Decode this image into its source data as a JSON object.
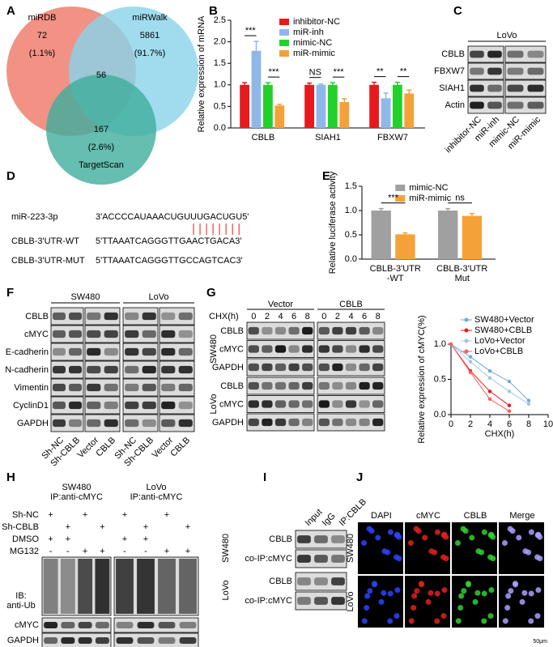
{
  "panel_labels": [
    "A",
    "B",
    "C",
    "D",
    "E",
    "F",
    "G",
    "H",
    "I",
    "J"
  ],
  "venn": {
    "sets": [
      {
        "name": "miRDB",
        "count": 72,
        "percent": "(1.1%)"
      },
      {
        "name": "miRWalk",
        "count": 5861,
        "percent": "(91.7%)"
      },
      {
        "name": "TargetScan",
        "count": 167,
        "percent": "(2.6%)"
      }
    ],
    "overlap": 56
  },
  "chart_data": [
    {
      "type": "bar",
      "ylabel": "Relative expression of mRNA",
      "categories": [
        "CBLB",
        "SIAH1",
        "FBXW7"
      ],
      "series": [
        {
          "name": "inhibitor-NC",
          "color": "#e8191c",
          "values": [
            1.0,
            1.0,
            1.0
          ],
          "errors": [
            0.05,
            0.04,
            0.06
          ]
        },
        {
          "name": "miR-inh",
          "color": "#8fb8e8",
          "values": [
            1.79,
            1.0,
            0.69
          ],
          "errors": [
            0.22,
            0.02,
            0.12
          ]
        },
        {
          "name": "mimic-NC",
          "color": "#22d12a",
          "values": [
            1.0,
            1.0,
            1.0
          ],
          "errors": [
            0.05,
            0.05,
            0.06
          ]
        },
        {
          "name": "miR-mimic",
          "color": "#f5a13a",
          "values": [
            0.52,
            0.6,
            0.8
          ],
          "errors": [
            0.03,
            0.08,
            0.08
          ]
        }
      ],
      "ylim": [
        0,
        2.5
      ],
      "yticks": [
        {
          "value": 0,
          "label": "0.0"
        },
        0.5,
        {
          "value": 1,
          "label": "1.0"
        },
        1.5,
        {
          "value": 2,
          "label": "2.0"
        },
        2.5
      ],
      "significance": [
        [
          "***",
          "***"
        ],
        [
          "NS",
          "***"
        ],
        [
          "**",
          "**"
        ]
      ],
      "legend": "upper left"
    },
    {
      "type": "bar",
      "ylabel": "Relative luciferase activity",
      "categories": [
        [
          "CBLB-3'UTR",
          "-WT"
        ],
        [
          "CBLB-3'UTR",
          "Mut"
        ]
      ],
      "series": [
        {
          "name": "mimic-NC",
          "color": "#a0a0a0",
          "values": [
            1.0,
            1.0
          ],
          "errors": [
            0.04,
            0.04
          ]
        },
        {
          "name": "miR-mimic",
          "color": "#f5a13a",
          "values": [
            0.51,
            0.89
          ],
          "errors": [
            0.03,
            0.05
          ]
        }
      ],
      "ylim": [
        0,
        1.5
      ],
      "yticks": [
        {
          "value": 0,
          "label": "0.0"
        },
        0.5,
        {
          "value": 1,
          "label": "1.0"
        },
        1.5
      ],
      "significance": [
        [
          "***"
        ],
        [
          "ns"
        ]
      ],
      "legend": "upper left"
    },
    {
      "type": "line",
      "ylabel": "Relative expression of cMYC(%)",
      "xlabel": "CHX(h)",
      "x": [
        0,
        2,
        4,
        6,
        8
      ],
      "series": [
        {
          "name": "SW480+Vector",
          "color": "#6fa8dc",
          "values": [
            1.0,
            0.82,
            0.62,
            0.47,
            0.2
          ]
        },
        {
          "name": "SW480+CBLB",
          "color": "#e8191c",
          "values": [
            1.0,
            0.62,
            0.33,
            0.13,
            null
          ]
        },
        {
          "name": "LoVo+Vector",
          "color": "#9fc5e8",
          "values": [
            1.0,
            0.75,
            0.52,
            0.33,
            0.15
          ]
        },
        {
          "name": "LoVo+CBLB",
          "color": "#ff5a5a",
          "values": [
            1.0,
            0.6,
            0.22,
            0.05,
            null
          ]
        }
      ],
      "xlim": [
        0,
        10
      ],
      "xticks": [
        0,
        2,
        4,
        6,
        8,
        10
      ],
      "ylim": [
        0,
        1.0
      ],
      "yticks": [
        {
          "value": 0,
          "label": "0.0"
        },
        0.5,
        {
          "value": 1,
          "label": "1.0"
        }
      ],
      "legend": "upper right"
    }
  ],
  "blot_c": {
    "cell_line": "LoVo",
    "rows": [
      "CBLB",
      "FBXW7",
      "SIAH1",
      "Actin"
    ],
    "lanes": [
      "inhibitor-NC",
      "miR-inh",
      "mimic-NC",
      "miR-mimic"
    ]
  },
  "sequences": {
    "rows": [
      {
        "label": "miR-223-3p",
        "sequence": "3'ACCCCAUAAACUGU",
        "site": "UUGACUGU",
        "end": "5'"
      },
      {
        "label": "CBLB-3'UTR-WT",
        "sequence": "5'TTAAATCAGGGTTG",
        "site": "AACTGACA",
        "end": "3'"
      },
      {
        "label": "CBLB-3'UTR-MUT",
        "sequence": "5'TTAAATCAGGGTTG",
        "site": "CCAGTCAC",
        "end": "3'"
      }
    ]
  },
  "blot_f": {
    "groups": [
      "SW480",
      "LoVo"
    ],
    "rows": [
      "CBLB",
      "cMYC",
      "E-cadherin",
      "N-cadherin",
      "Vimentin",
      "CyclinD1",
      "GAPDH"
    ],
    "lanes": [
      "Sh-NC",
      "Sh-CBLB",
      "Vector",
      "CBLB",
      "Sh-NC",
      "Sh-CBLB",
      "Vector",
      "CBLB"
    ]
  },
  "blot_g": {
    "time_label": "CHX(h)",
    "groups": [
      "Vector",
      "CBLB"
    ],
    "times": [
      0,
      2,
      4,
      6,
      8
    ],
    "cell_lines": [
      {
        "name": "SW480",
        "rows": [
          "CBLB",
          "cMYC",
          "GAPDH"
        ]
      },
      {
        "name": "LoVo",
        "rows": [
          "CBLB",
          "cMYC",
          "GAPDH"
        ]
      }
    ]
  },
  "blot_h": {
    "groups": [
      [
        "SW480",
        "IP:anti-cMYC"
      ],
      [
        "LoVo",
        "IP:anti-cMYC"
      ]
    ],
    "treatments": [
      {
        "label": "Sh-NC",
        "marks": [
          "+",
          null,
          "+",
          null,
          "+",
          null,
          "+",
          null
        ]
      },
      {
        "label": "Sh-CBLB",
        "marks": [
          null,
          "+",
          null,
          "+",
          null,
          "+",
          null,
          "+"
        ]
      },
      {
        "label": "DMSO",
        "marks": [
          "+",
          "+",
          null,
          null,
          "+",
          "+",
          null,
          null
        ]
      },
      {
        "label": "MG132",
        "marks": [
          "-",
          "-",
          "+",
          "+",
          "-",
          "-",
          "+",
          "+"
        ]
      }
    ],
    "ib_label": [
      "IB:",
      "anti-Ub"
    ],
    "rows": [
      "cMYC",
      "GAPDH"
    ]
  },
  "blot_i": {
    "lanes": [
      "Input",
      "IgG",
      "IP:CBLB"
    ],
    "cell_lines": [
      {
        "name": "SW480",
        "rows": [
          "CBLB",
          "co-IP:cMYC"
        ]
      },
      {
        "name": "LoVo",
        "rows": [
          "CBLB",
          "co-IP:cMYC"
        ]
      }
    ]
  },
  "if_j": {
    "channels": [
      "DAPI",
      "cMYC",
      "CBLB",
      "Merge"
    ],
    "cell_lines": [
      "SW480",
      "LoVo"
    ],
    "scale_bar": "50μm"
  }
}
